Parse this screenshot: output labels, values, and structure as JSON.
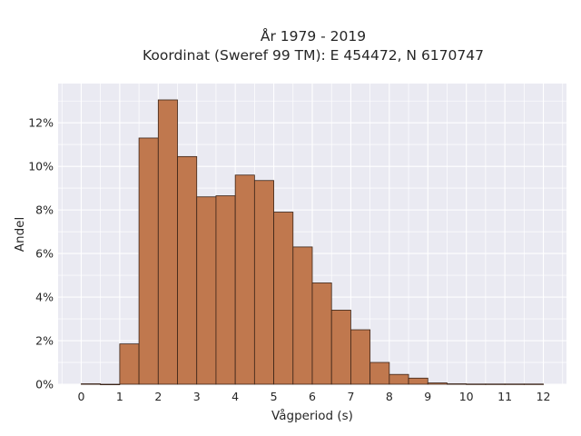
{
  "chart_data": {
    "type": "bar",
    "title_line1": "År 1979 - 2019",
    "title_line2": "Koordinat (Sweref 99 TM): E 454472, N 6170747",
    "xlabel": "Vågperiod (s)",
    "ylabel": "Andel",
    "x_ticks": [
      "0",
      "1",
      "2",
      "3",
      "4",
      "5",
      "6",
      "7",
      "8",
      "9",
      "10",
      "11",
      "12"
    ],
    "y_ticks": [
      "0%",
      "2%",
      "4%",
      "6%",
      "8%",
      "10%",
      "12%"
    ],
    "xlim": [
      -0.6,
      12.6
    ],
    "ylim": [
      0,
      13.8
    ],
    "bin_width": 0.5,
    "bins": [
      {
        "x0": 0.0,
        "value": 0.02
      },
      {
        "x0": 0.5,
        "value": 0.0
      },
      {
        "x0": 1.0,
        "value": 1.85
      },
      {
        "x0": 1.5,
        "value": 11.3
      },
      {
        "x0": 2.0,
        "value": 13.05
      },
      {
        "x0": 2.5,
        "value": 10.45
      },
      {
        "x0": 3.0,
        "value": 8.6
      },
      {
        "x0": 3.5,
        "value": 8.65
      },
      {
        "x0": 4.0,
        "value": 9.6
      },
      {
        "x0": 4.5,
        "value": 9.35
      },
      {
        "x0": 5.0,
        "value": 7.9
      },
      {
        "x0": 5.5,
        "value": 6.3
      },
      {
        "x0": 6.0,
        "value": 4.65
      },
      {
        "x0": 6.5,
        "value": 3.4
      },
      {
        "x0": 7.0,
        "value": 2.5
      },
      {
        "x0": 7.5,
        "value": 1.0
      },
      {
        "x0": 8.0,
        "value": 0.45
      },
      {
        "x0": 8.5,
        "value": 0.28
      },
      {
        "x0": 9.0,
        "value": 0.06
      },
      {
        "x0": 9.5,
        "value": 0.02
      },
      {
        "x0": 10.0,
        "value": 0.01
      },
      {
        "x0": 10.5,
        "value": 0.01
      },
      {
        "x0": 11.0,
        "value": 0.01
      },
      {
        "x0": 11.5,
        "value": 0.01
      }
    ],
    "colors": {
      "bar_fill": "#c0784e",
      "bar_edge": "#3b2418",
      "plot_background": "#eaeaf2",
      "grid": "#ffffff"
    },
    "grid": true
  }
}
